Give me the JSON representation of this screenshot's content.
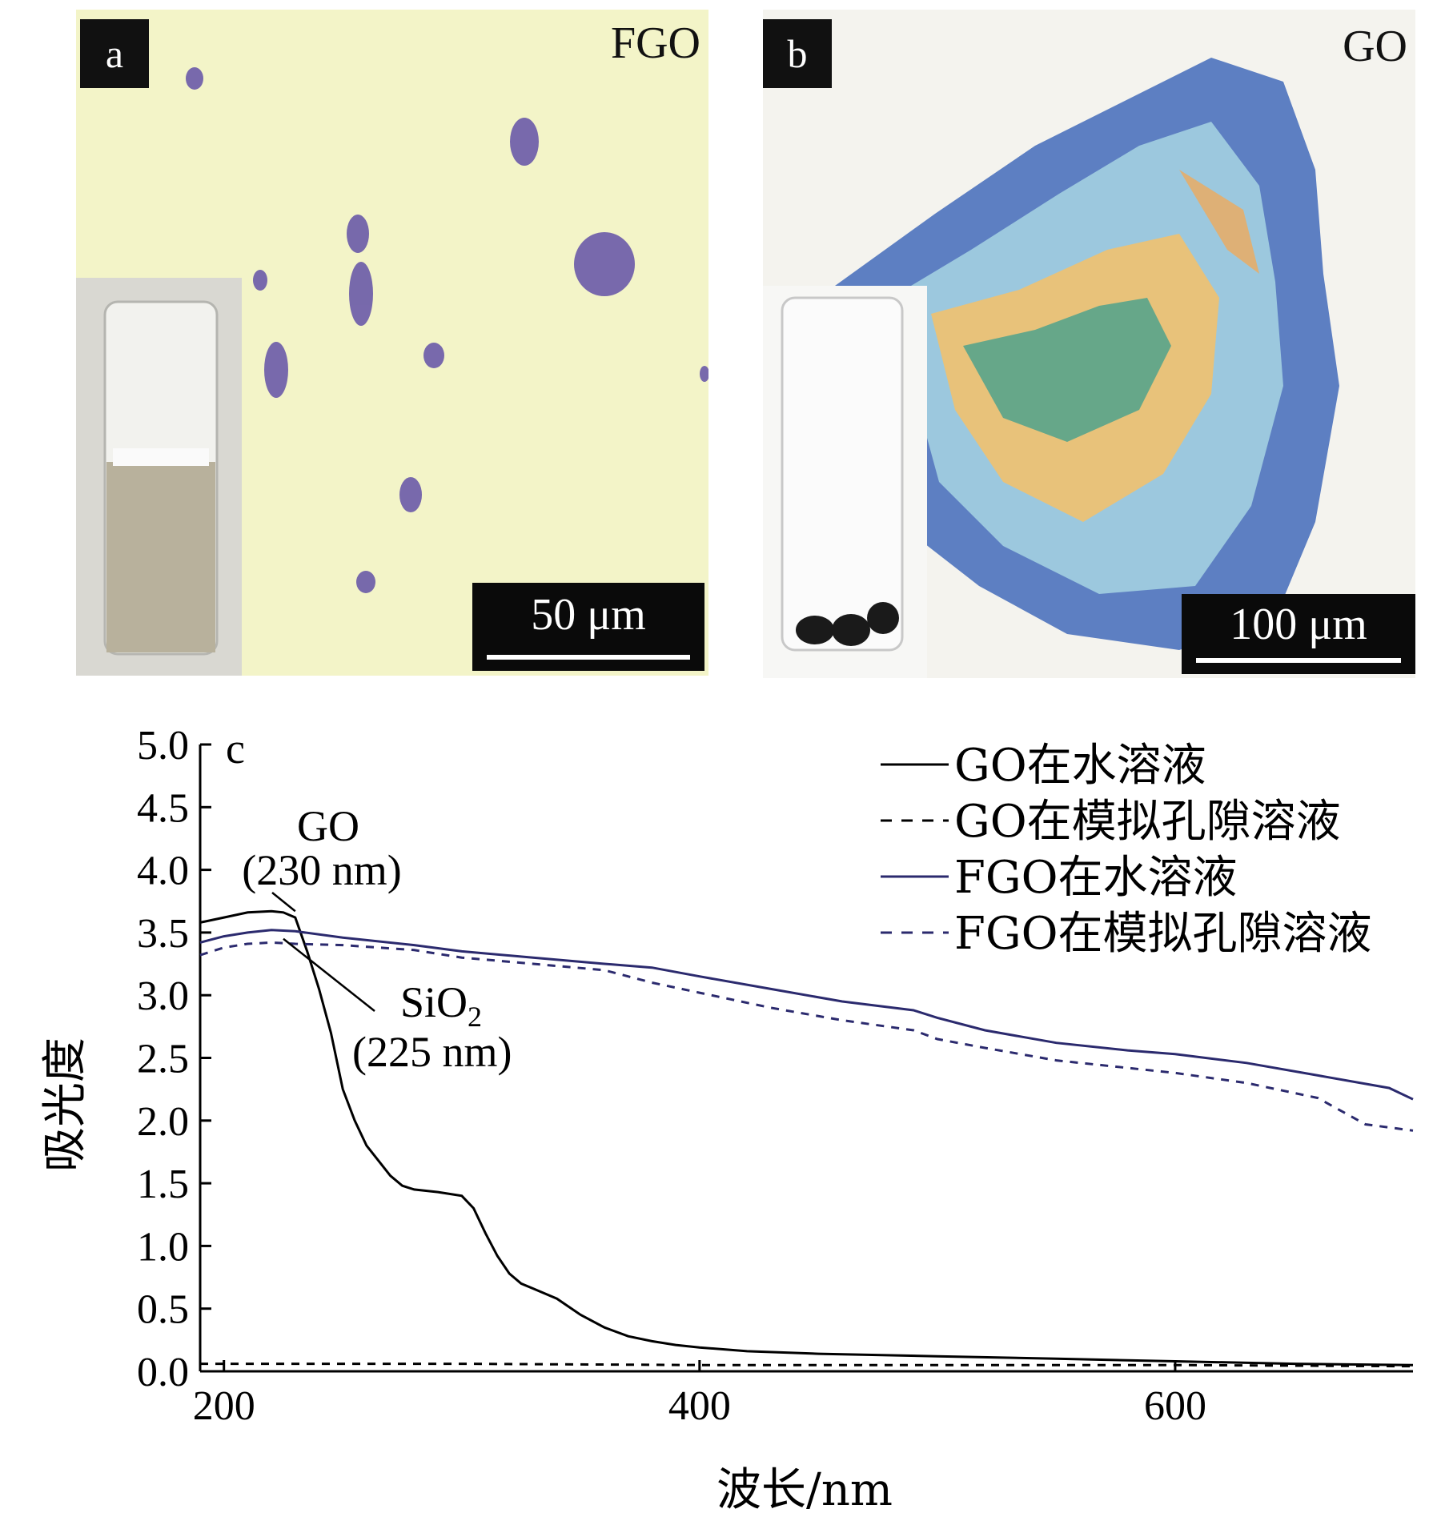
{
  "panel_a": {
    "tag": "a",
    "label": "FGO",
    "scale": "50 μm"
  },
  "panel_b": {
    "tag": "b",
    "label": "GO",
    "scale": "100 μm"
  },
  "chart_data": {
    "type": "line",
    "panel_tag": "c",
    "xlabel": "波长/nm",
    "ylabel": "吸光度",
    "xlim": [
      190,
      700
    ],
    "ylim": [
      0,
      5.0
    ],
    "xticks": [
      "200",
      "400",
      "600"
    ],
    "yticks": [
      "0.0",
      "0.5",
      "1.0",
      "1.5",
      "2.0",
      "2.5",
      "3.0",
      "3.5",
      "4.0",
      "4.5",
      "5.0"
    ],
    "legend_position": "top-right",
    "colors": {
      "go": "#000000",
      "fgo": "#2b2a6e"
    },
    "series": [
      {
        "name": "GO在水溶液",
        "style": "solid",
        "color": "#000000",
        "points": [
          [
            190,
            3.58
          ],
          [
            200,
            3.62
          ],
          [
            210,
            3.66
          ],
          [
            220,
            3.67
          ],
          [
            225,
            3.66
          ],
          [
            230,
            3.62
          ],
          [
            235,
            3.35
          ],
          [
            240,
            3.05
          ],
          [
            245,
            2.7
          ],
          [
            250,
            2.25
          ],
          [
            255,
            2.0
          ],
          [
            260,
            1.8
          ],
          [
            265,
            1.68
          ],
          [
            270,
            1.56
          ],
          [
            275,
            1.48
          ],
          [
            280,
            1.45
          ],
          [
            290,
            1.43
          ],
          [
            300,
            1.4
          ],
          [
            305,
            1.3
          ],
          [
            310,
            1.1
          ],
          [
            315,
            0.92
          ],
          [
            320,
            0.78
          ],
          [
            325,
            0.7
          ],
          [
            330,
            0.66
          ],
          [
            340,
            0.58
          ],
          [
            350,
            0.45
          ],
          [
            360,
            0.35
          ],
          [
            370,
            0.28
          ],
          [
            380,
            0.24
          ],
          [
            390,
            0.21
          ],
          [
            400,
            0.19
          ],
          [
            420,
            0.16
          ],
          [
            450,
            0.14
          ],
          [
            500,
            0.12
          ],
          [
            550,
            0.1
          ],
          [
            600,
            0.08
          ],
          [
            650,
            0.06
          ],
          [
            700,
            0.05
          ]
        ]
      },
      {
        "name": "GO在模拟孔隙溶液",
        "style": "dashed",
        "color": "#000000",
        "points": [
          [
            190,
            0.06
          ],
          [
            300,
            0.06
          ],
          [
            400,
            0.05
          ],
          [
            500,
            0.05
          ],
          [
            600,
            0.05
          ],
          [
            700,
            0.04
          ]
        ]
      },
      {
        "name": "FGO在水溶液",
        "style": "solid",
        "color": "#2b2a6e",
        "points": [
          [
            190,
            3.42
          ],
          [
            200,
            3.47
          ],
          [
            210,
            3.5
          ],
          [
            220,
            3.52
          ],
          [
            230,
            3.51
          ],
          [
            250,
            3.46
          ],
          [
            280,
            3.4
          ],
          [
            300,
            3.35
          ],
          [
            330,
            3.3
          ],
          [
            360,
            3.25
          ],
          [
            380,
            3.22
          ],
          [
            400,
            3.15
          ],
          [
            430,
            3.05
          ],
          [
            460,
            2.95
          ],
          [
            490,
            2.88
          ],
          [
            500,
            2.82
          ],
          [
            520,
            2.72
          ],
          [
            550,
            2.62
          ],
          [
            580,
            2.56
          ],
          [
            600,
            2.53
          ],
          [
            630,
            2.46
          ],
          [
            660,
            2.36
          ],
          [
            690,
            2.26
          ],
          [
            700,
            2.17
          ]
        ]
      },
      {
        "name": "FGO在模拟孔隙溶液",
        "style": "dashed",
        "color": "#2b2a6e",
        "points": [
          [
            190,
            3.32
          ],
          [
            200,
            3.38
          ],
          [
            210,
            3.41
          ],
          [
            220,
            3.42
          ],
          [
            230,
            3.41
          ],
          [
            250,
            3.4
          ],
          [
            280,
            3.36
          ],
          [
            300,
            3.3
          ],
          [
            330,
            3.25
          ],
          [
            360,
            3.2
          ],
          [
            380,
            3.1
          ],
          [
            400,
            3.02
          ],
          [
            430,
            2.9
          ],
          [
            460,
            2.8
          ],
          [
            490,
            2.72
          ],
          [
            500,
            2.65
          ],
          [
            520,
            2.58
          ],
          [
            550,
            2.48
          ],
          [
            580,
            2.42
          ],
          [
            600,
            2.38
          ],
          [
            630,
            2.3
          ],
          [
            660,
            2.18
          ],
          [
            680,
            1.97
          ],
          [
            700,
            1.92
          ]
        ]
      }
    ],
    "annotations": [
      {
        "lines": [
          "GO",
          "(230 nm)"
        ],
        "x": 230,
        "y": 3.67
      },
      {
        "lines": [
          "SiO",
          "(225 nm)"
        ],
        "subscript": "2",
        "x": 225,
        "y": 3.45
      }
    ]
  }
}
